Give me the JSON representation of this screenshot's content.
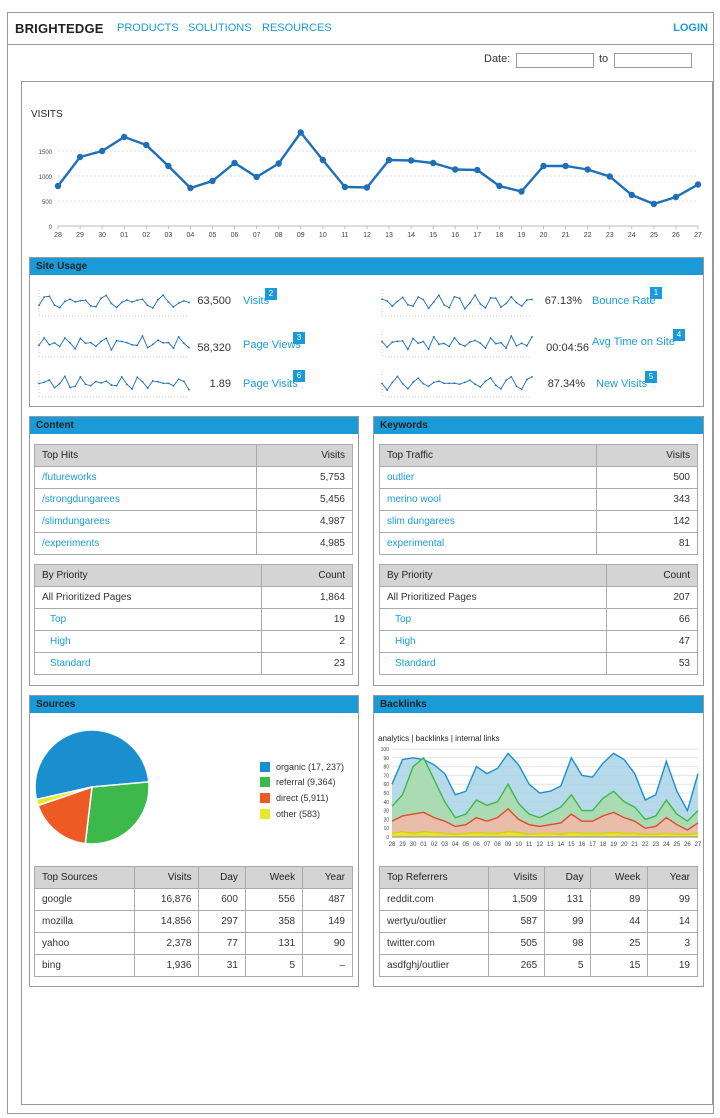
{
  "header": {
    "brand": "BRIGHTEDGE",
    "nav": [
      "PRODUCTS",
      "SOLUTIONS",
      "RESOURCES"
    ],
    "login": "LOGIN"
  },
  "date_filter": {
    "label": "Date:",
    "to_label": "to",
    "from_value": "",
    "to_value": ""
  },
  "visits_chart": {
    "title": "VISITS"
  },
  "site_usage": {
    "title": "Site Usage",
    "metrics": [
      {
        "value": "63,500",
        "label": "Visits",
        "badge": "2"
      },
      {
        "value": "58,320",
        "label": "Page Views",
        "badge": "3"
      },
      {
        "value": "1.89",
        "label": "Page Visits",
        "badge": "6"
      },
      {
        "value": "67.13%",
        "label": "Bounce Rate",
        "badge": "1"
      },
      {
        "value": "00:04:56",
        "label": "Avg Time on Site",
        "badge": "4"
      },
      {
        "value": "87.34%",
        "label": "New Visits",
        "badge": "5"
      }
    ]
  },
  "content": {
    "title": "Content",
    "top_hits": {
      "headers": [
        "Top Hits",
        "Visits"
      ],
      "rows": [
        [
          "/futureworks",
          "5,753"
        ],
        [
          "/strongdungarees",
          "5,456"
        ],
        [
          "/slimdungarees",
          "4,987"
        ],
        [
          "/experiments",
          "4,985"
        ]
      ]
    },
    "priority": {
      "headers": [
        "By Priority",
        "Count"
      ],
      "rows": [
        [
          "All Prioritized Pages",
          "1,864"
        ],
        [
          "Top",
          "19"
        ],
        [
          "High",
          "2"
        ],
        [
          "Standard",
          "23"
        ]
      ]
    }
  },
  "keywords": {
    "title": "Keywords",
    "top_traffic": {
      "headers": [
        "Top Traffic",
        "Visits"
      ],
      "rows": [
        [
          "outlier",
          "500"
        ],
        [
          "merino wool",
          "343"
        ],
        [
          "slim dungarees",
          "142"
        ],
        [
          "experimental",
          "81"
        ]
      ]
    },
    "priority": {
      "headers": [
        "By Priority",
        "Count"
      ],
      "rows": [
        [
          "All Prioritized Pages",
          "207"
        ],
        [
          "Top",
          "66"
        ],
        [
          "High",
          "47"
        ],
        [
          "Standard",
          "53"
        ]
      ]
    }
  },
  "sources": {
    "title": "Sources",
    "legend": [
      {
        "label": "organic (17, 237)",
        "color": "#1a8fd0"
      },
      {
        "label": "referral (9,364)",
        "color": "#3db84a"
      },
      {
        "label": "direct (5,911)",
        "color": "#ee5a24"
      },
      {
        "label": "other (583)",
        "color": "#e8e82a"
      }
    ],
    "table": {
      "headers": [
        "Top Sources",
        "Visits",
        "Day",
        "Week",
        "Year"
      ],
      "rows": [
        [
          "google",
          "16,876",
          "600",
          "556",
          "487"
        ],
        [
          "mozilla",
          "14,856",
          "297",
          "358",
          "149"
        ],
        [
          "yahoo",
          "2,378",
          "77",
          "131",
          "90"
        ],
        [
          "bing",
          "1,936",
          "31",
          "5",
          "–"
        ]
      ]
    }
  },
  "backlinks": {
    "title": "Backlinks",
    "tabs": [
      "analytics",
      "backlinks",
      "internal links"
    ],
    "table": {
      "headers": [
        "Top Referrers",
        "Visits",
        "Day",
        "Week",
        "Year"
      ],
      "rows": [
        [
          "reddit.com",
          "1,509",
          "131",
          "89",
          "99"
        ],
        [
          "wertyu/outlier",
          "587",
          "99",
          "44",
          "14"
        ],
        [
          "twitter.com",
          "505",
          "98",
          "25",
          "3"
        ],
        [
          "asdfghj/outlier",
          "265",
          "5",
          "15",
          "19"
        ]
      ]
    }
  },
  "chart_data": [
    {
      "type": "line",
      "title": "VISITS",
      "x": [
        "28",
        "29",
        "30",
        "01",
        "02",
        "03",
        "04",
        "05",
        "06",
        "07",
        "08",
        "09",
        "10",
        "11",
        "12",
        "13",
        "14",
        "15",
        "16",
        "17",
        "18",
        "19",
        "20",
        "21",
        "22",
        "23",
        "24",
        "25",
        "26",
        "27"
      ],
      "values": [
        800,
        1380,
        1500,
        1780,
        1620,
        1200,
        760,
        900,
        1260,
        980,
        1250,
        1870,
        1320,
        780,
        770,
        1320,
        1310,
        1260,
        1130,
        1120,
        800,
        690,
        1200,
        1200,
        1130,
        990,
        620,
        440,
        580,
        830
      ],
      "yticks": [
        0,
        500,
        1000,
        1500
      ],
      "ylim": [
        0,
        2000
      ],
      "grid": true
    },
    {
      "type": "pie",
      "categories": [
        "organic",
        "referral",
        "direct",
        "other"
      ],
      "values": [
        17237,
        9364,
        5911,
        583
      ],
      "colors": [
        "#1a8fd0",
        "#3db84a",
        "#ee5a24",
        "#e8e82a"
      ]
    },
    {
      "type": "area",
      "x": [
        "28",
        "29",
        "30",
        "01",
        "02",
        "03",
        "04",
        "05",
        "06",
        "07",
        "08",
        "09",
        "10",
        "11",
        "12",
        "13",
        "14",
        "15",
        "16",
        "17",
        "18",
        "19",
        "20",
        "21",
        "22",
        "23",
        "24",
        "25",
        "26",
        "27"
      ],
      "yticks": [
        0,
        10,
        20,
        30,
        40,
        50,
        60,
        70,
        80,
        90,
        100
      ],
      "ylim": [
        0,
        100
      ],
      "series": [
        {
          "name": "analytics",
          "color": "#a9d3e6",
          "values": [
            60,
            88,
            90,
            88,
            82,
            72,
            48,
            52,
            80,
            72,
            78,
            95,
            82,
            60,
            50,
            52,
            58,
            90,
            70,
            68,
            84,
            95,
            88,
            72,
            42,
            48,
            86,
            52,
            30,
            72
          ]
        },
        {
          "name": "backlinks",
          "color": "#a9dba9",
          "values": [
            35,
            48,
            80,
            90,
            65,
            40,
            22,
            26,
            42,
            36,
            40,
            60,
            38,
            26,
            22,
            28,
            34,
            48,
            30,
            30,
            44,
            52,
            40,
            34,
            20,
            24,
            42,
            26,
            18,
            30
          ]
        },
        {
          "name": "internal links",
          "color": "#f2b8a8",
          "values": [
            18,
            24,
            26,
            28,
            22,
            18,
            12,
            14,
            22,
            18,
            22,
            32,
            20,
            14,
            12,
            14,
            16,
            26,
            18,
            18,
            24,
            28,
            22,
            18,
            10,
            12,
            22,
            14,
            8,
            16
          ]
        },
        {
          "name": "other",
          "color": "#e8e82a",
          "values": [
            4,
            6,
            4,
            6,
            5,
            4,
            3,
            4,
            5,
            4,
            4,
            6,
            5,
            3,
            4,
            4,
            3,
            5,
            4,
            4,
            4,
            5,
            4,
            4,
            3,
            3,
            4,
            3,
            3,
            4
          ]
        }
      ]
    }
  ]
}
